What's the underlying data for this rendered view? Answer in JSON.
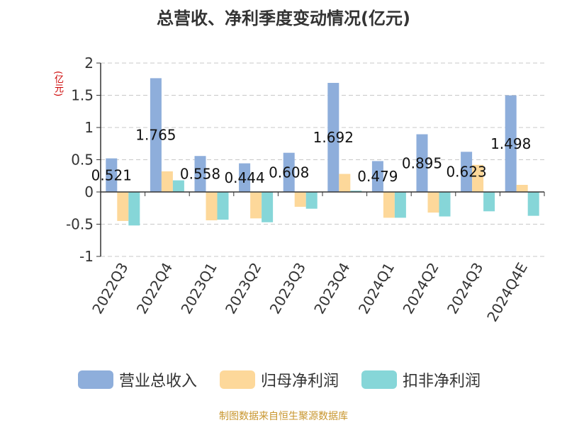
{
  "title": "总营收、净利季度变动情况(亿元)",
  "unit_label": "(亿元)",
  "source": "制图数据来自恒生聚源数据库",
  "chart_data": {
    "type": "bar",
    "title": "总营收、净利季度变动情况(亿元)",
    "ylabel": "(亿元)",
    "xlabel": "",
    "ylim": [
      -1,
      2
    ],
    "yticks": [
      2,
      1.5,
      1,
      0.5,
      0,
      -0.5,
      -1
    ],
    "ytick_labels": [
      "2",
      "1.5",
      "1",
      "0.5",
      "0",
      "-0.5",
      "-1"
    ],
    "grid": true,
    "legend_position": "bottom",
    "categories": [
      "2022Q3",
      "2022Q4",
      "2023Q1",
      "2023Q2",
      "2023Q3",
      "2023Q4",
      "2024Q1",
      "2024Q2",
      "2024Q3",
      "2024Q4E"
    ],
    "series": [
      {
        "name": "营业总收入",
        "color": "#8eaedb",
        "values": [
          0.521,
          1.765,
          0.558,
          0.444,
          0.608,
          1.692,
          0.479,
          0.895,
          0.623,
          1.498
        ],
        "data_labels": [
          "0.521",
          "1.765",
          "0.558",
          "0.444",
          "0.608",
          "1.692",
          "0.479",
          "0.895",
          "0.623",
          "1.498"
        ]
      },
      {
        "name": "归母净利润",
        "color": "#fdd89a",
        "values": [
          -0.45,
          0.32,
          -0.44,
          -0.41,
          -0.23,
          0.28,
          -0.4,
          -0.32,
          0.42,
          0.11
        ]
      },
      {
        "name": "扣非净利润",
        "color": "#86d6d8",
        "values": [
          -0.52,
          0.18,
          -0.43,
          -0.47,
          -0.26,
          0.02,
          -0.4,
          -0.38,
          -0.3,
          -0.37
        ]
      }
    ]
  }
}
